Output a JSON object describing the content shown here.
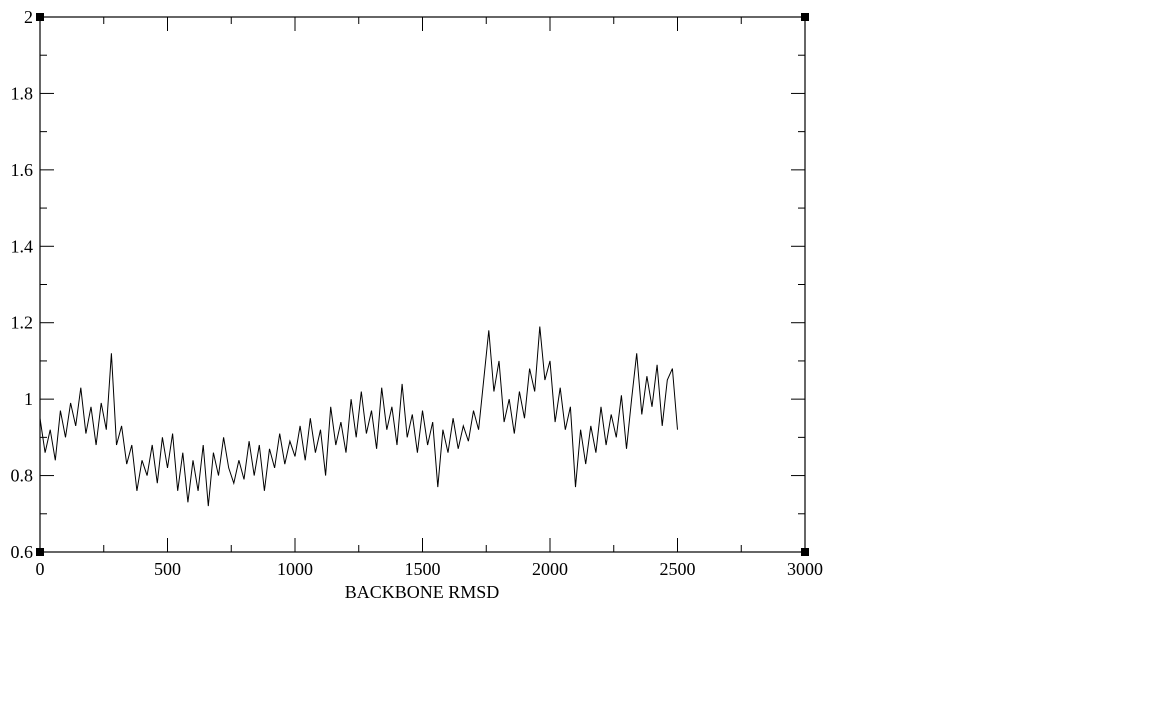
{
  "chart_data": {
    "type": "line",
    "xlabel": "BACKBONE RMSD",
    "xlim": [
      0,
      3000
    ],
    "xticks": [
      0,
      500,
      1000,
      1500,
      2000,
      2500,
      3000
    ],
    "xminorticks": [
      250,
      750,
      1250,
      1750,
      2250,
      2750
    ],
    "ylim": [
      0.6,
      2
    ],
    "yticks": [
      0.6,
      0.8,
      1,
      1.2,
      1.4,
      1.6,
      1.8,
      2
    ],
    "yminorticks": [
      0.7,
      0.9,
      1.1,
      1.3,
      1.5,
      1.7,
      1.9
    ],
    "color": "#000000",
    "x": [
      0,
      20,
      40,
      60,
      80,
      100,
      120,
      140,
      160,
      180,
      200,
      220,
      240,
      260,
      280,
      300,
      320,
      340,
      360,
      380,
      400,
      420,
      440,
      460,
      480,
      500,
      520,
      540,
      560,
      580,
      600,
      620,
      640,
      660,
      680,
      700,
      720,
      740,
      760,
      780,
      800,
      820,
      840,
      860,
      880,
      900,
      920,
      940,
      960,
      980,
      1000,
      1020,
      1040,
      1060,
      1080,
      1100,
      1120,
      1140,
      1160,
      1180,
      1200,
      1220,
      1240,
      1260,
      1280,
      1300,
      1320,
      1340,
      1360,
      1380,
      1400,
      1420,
      1440,
      1460,
      1480,
      1500,
      1520,
      1540,
      1560,
      1580,
      1600,
      1620,
      1640,
      1660,
      1680,
      1700,
      1720,
      1740,
      1760,
      1780,
      1800,
      1820,
      1840,
      1860,
      1880,
      1900,
      1920,
      1940,
      1960,
      1980,
      2000,
      2020,
      2040,
      2060,
      2080,
      2100,
      2120,
      2140,
      2160,
      2180,
      2200,
      2220,
      2240,
      2260,
      2280,
      2300,
      2320,
      2340,
      2360,
      2380,
      2400,
      2420,
      2440,
      2460,
      2480,
      2500
    ],
    "values": [
      0.95,
      0.86,
      0.92,
      0.84,
      0.97,
      0.9,
      0.99,
      0.93,
      1.03,
      0.91,
      0.98,
      0.88,
      0.99,
      0.92,
      1.12,
      0.88,
      0.93,
      0.83,
      0.88,
      0.76,
      0.84,
      0.8,
      0.88,
      0.78,
      0.9,
      0.82,
      0.91,
      0.76,
      0.86,
      0.73,
      0.84,
      0.76,
      0.88,
      0.72,
      0.86,
      0.8,
      0.9,
      0.82,
      0.78,
      0.84,
      0.79,
      0.89,
      0.8,
      0.88,
      0.76,
      0.87,
      0.82,
      0.91,
      0.83,
      0.89,
      0.85,
      0.93,
      0.84,
      0.95,
      0.86,
      0.92,
      0.8,
      0.98,
      0.88,
      0.94,
      0.86,
      1.0,
      0.9,
      1.02,
      0.91,
      0.97,
      0.87,
      1.03,
      0.92,
      0.98,
      0.88,
      1.04,
      0.9,
      0.96,
      0.86,
      0.97,
      0.88,
      0.94,
      0.77,
      0.92,
      0.86,
      0.95,
      0.87,
      0.93,
      0.89,
      0.97,
      0.92,
      1.05,
      1.18,
      1.02,
      1.1,
      0.94,
      1.0,
      0.91,
      1.02,
      0.95,
      1.08,
      1.02,
      1.19,
      1.05,
      1.1,
      0.94,
      1.03,
      0.92,
      0.98,
      0.77,
      0.92,
      0.83,
      0.93,
      0.86,
      0.98,
      0.88,
      0.96,
      0.9,
      1.01,
      0.87,
      1.0,
      1.12,
      0.96,
      1.06,
      0.98,
      1.09,
      0.93,
      1.05,
      1.08,
      0.92
    ]
  }
}
